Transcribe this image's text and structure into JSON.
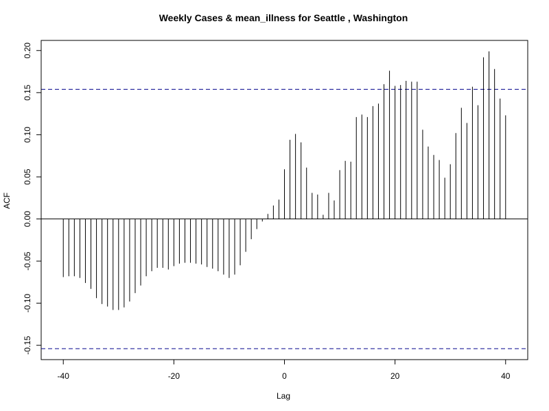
{
  "chart_data": {
    "type": "bar",
    "title": "Weekly Cases & mean_illness for Seattle , Washington",
    "xlabel": "Lag",
    "ylabel": "ACF",
    "xlim": [
      -44,
      44
    ],
    "ylim": [
      -0.167,
      0.212
    ],
    "xticks": [
      -40,
      -20,
      0,
      20,
      40
    ],
    "xtick_labels": [
      "-40",
      "-20",
      "0",
      "20",
      "40"
    ],
    "yticks": [
      -0.15,
      -0.1,
      -0.05,
      0.0,
      0.05,
      0.1,
      0.15,
      0.2
    ],
    "ytick_labels": [
      "-0.15",
      "-0.10",
      "-0.05",
      "0.00",
      "0.05",
      "0.10",
      "0.15",
      "0.20"
    ],
    "confidence_bounds": [
      0.154,
      -0.154
    ],
    "colors": {
      "bars": "#000000",
      "confidence_line": "#00008B",
      "zero_line": "#000000"
    },
    "grid": false,
    "legend": "none",
    "x": [
      -40,
      -39,
      -38,
      -37,
      -36,
      -35,
      -34,
      -33,
      -32,
      -31,
      -30,
      -29,
      -28,
      -27,
      -26,
      -25,
      -24,
      -23,
      -22,
      -21,
      -20,
      -19,
      -18,
      -17,
      -16,
      -15,
      -14,
      -13,
      -12,
      -11,
      -10,
      -9,
      -8,
      -7,
      -6,
      -5,
      -4,
      -3,
      -2,
      -1,
      0,
      1,
      2,
      3,
      4,
      5,
      6,
      7,
      8,
      9,
      10,
      11,
      12,
      13,
      14,
      15,
      16,
      17,
      18,
      19,
      20,
      21,
      22,
      23,
      24,
      25,
      26,
      27,
      28,
      29,
      30,
      31,
      32,
      33,
      34,
      35,
      36,
      37,
      38,
      39,
      40
    ],
    "values": [
      -0.069,
      -0.068,
      -0.068,
      -0.07,
      -0.076,
      -0.083,
      -0.094,
      -0.101,
      -0.104,
      -0.108,
      -0.108,
      -0.105,
      -0.098,
      -0.088,
      -0.079,
      -0.068,
      -0.062,
      -0.058,
      -0.058,
      -0.06,
      -0.056,
      -0.053,
      -0.052,
      -0.052,
      -0.053,
      -0.054,
      -0.057,
      -0.059,
      -0.062,
      -0.066,
      -0.07,
      -0.066,
      -0.055,
      -0.039,
      -0.024,
      -0.012,
      -0.003,
      0.006,
      0.016,
      0.023,
      0.059,
      0.094,
      0.101,
      0.091,
      0.061,
      0.031,
      0.029,
      0.005,
      0.031,
      0.022,
      0.058,
      0.069,
      0.068,
      0.121,
      0.124,
      0.121,
      0.134,
      0.137,
      0.16,
      0.176,
      0.158,
      0.159,
      0.164,
      0.163,
      0.163,
      0.106,
      0.086,
      0.076,
      0.07,
      0.049,
      0.065,
      0.102,
      0.132,
      0.114,
      0.157,
      0.135,
      0.192,
      0.199,
      0.178,
      0.143,
      0.123
    ]
  }
}
